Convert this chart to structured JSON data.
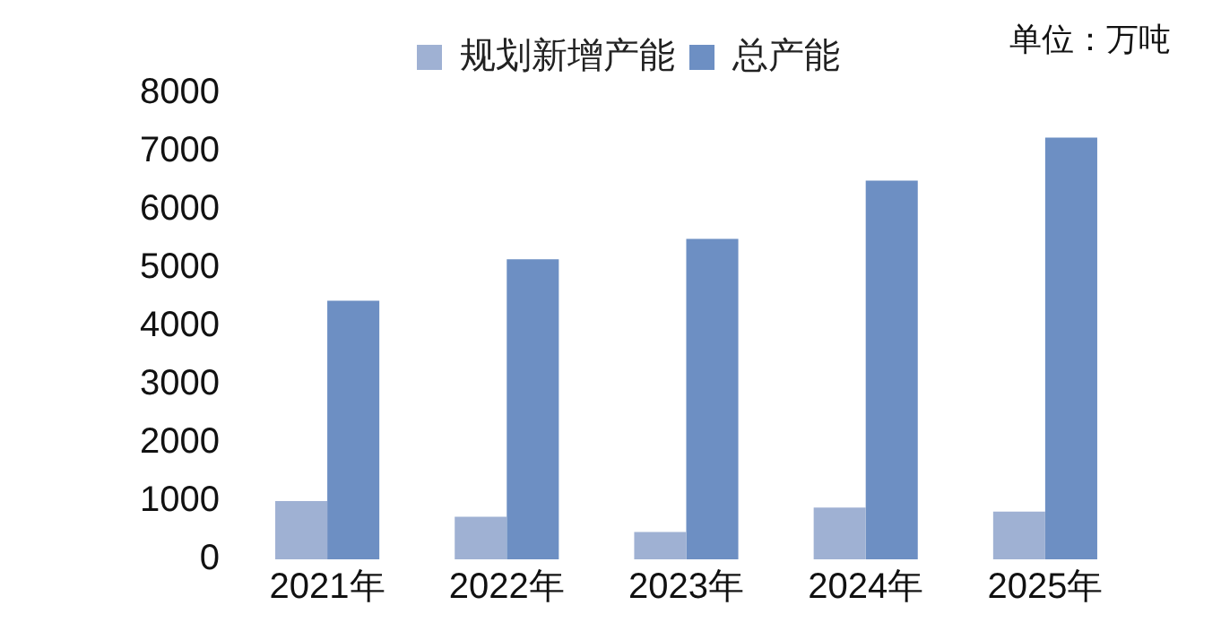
{
  "chart_data": {
    "type": "bar",
    "categories": [
      "2021年",
      "2022年",
      "2023年",
      "2024年",
      "2025年"
    ],
    "series": [
      {
        "name": "规划新增产能",
        "color": "#9fb1d3",
        "values": [
          1000,
          730,
          470,
          890,
          820
        ]
      },
      {
        "name": "总产能",
        "color": "#6d8fc3",
        "values": [
          4440,
          5150,
          5500,
          6500,
          7240
        ]
      }
    ],
    "ylim": [
      0,
      8000
    ],
    "yticks": [
      0,
      1000,
      2000,
      3000,
      4000,
      5000,
      6000,
      7000,
      8000
    ],
    "grid": false,
    "legend": "top",
    "annotations": [
      "单位：万吨"
    ]
  }
}
